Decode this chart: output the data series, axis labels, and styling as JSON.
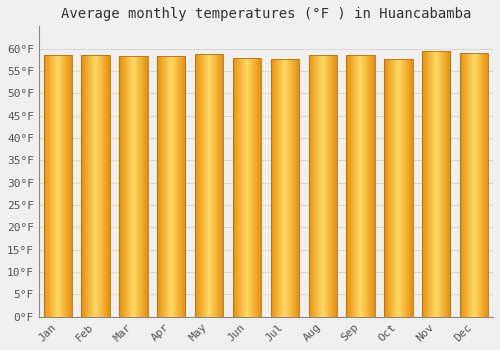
{
  "title": "Average monthly temperatures (°F ) in Huancabamba",
  "months": [
    "Jan",
    "Feb",
    "Mar",
    "Apr",
    "May",
    "Jun",
    "Jul",
    "Aug",
    "Sep",
    "Oct",
    "Nov",
    "Dec"
  ],
  "values": [
    58.5,
    58.5,
    58.3,
    58.3,
    58.8,
    57.9,
    57.7,
    58.5,
    58.6,
    57.7,
    59.5,
    59.0
  ],
  "ylim": [
    0,
    65
  ],
  "yticks": [
    0,
    5,
    10,
    15,
    20,
    25,
    30,
    35,
    40,
    45,
    50,
    55,
    60
  ],
  "bar_color_left": "#E8900A",
  "bar_color_center": "#FFD966",
  "bar_color_right": "#E8900A",
  "background_color": "#f0f0f0",
  "grid_color": "#d8d8d8",
  "title_fontsize": 10,
  "tick_fontsize": 8,
  "bar_width": 0.75,
  "n_gradient_strips": 40
}
